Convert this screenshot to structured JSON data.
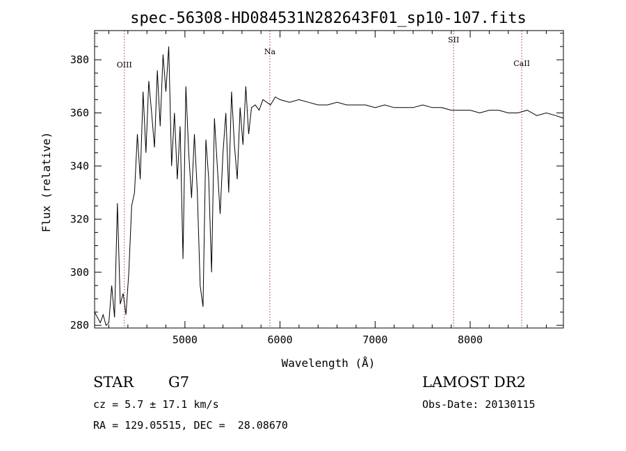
{
  "chart_data": {
    "type": "line",
    "title": "spec-56308-HD084531N282643F01_sp10-107.fits",
    "xlabel": "Wavelength (Å)",
    "ylabel": "Flux (relative)",
    "xlim": [
      4050,
      8980
    ],
    "ylim": [
      279,
      391
    ],
    "xticks": [
      5000,
      6000,
      7000,
      8000
    ],
    "yticks": [
      280,
      300,
      320,
      340,
      360,
      380
    ],
    "grid": false,
    "series": [
      {
        "x": [
          4050,
          4080,
          4110,
          4140,
          4170,
          4200,
          4230,
          4260,
          4290,
          4320,
          4350,
          4380,
          4410,
          4440,
          4470,
          4500,
          4530,
          4560,
          4590,
          4620,
          4650,
          4680,
          4710,
          4740,
          4770,
          4800,
          4830,
          4860,
          4890,
          4920,
          4950,
          4980,
          5010,
          5040,
          5070,
          5100,
          5130,
          5160,
          5190,
          5220,
          5250,
          5280,
          5310,
          5340,
          5370,
          5400,
          5430,
          5460,
          5490,
          5520,
          5550,
          5580,
          5610,
          5640,
          5670,
          5700,
          5740,
          5780,
          5820,
          5860,
          5900,
          5950,
          6000,
          6100,
          6200,
          6300,
          6400,
          6500,
          6600,
          6700,
          6800,
          6900,
          7000,
          7100,
          7200,
          7300,
          7400,
          7500,
          7600,
          7700,
          7800,
          7900,
          8000,
          8100,
          8200,
          8300,
          8400,
          8500,
          8600,
          8700,
          8800,
          8900,
          8980
        ],
        "y": [
          285,
          283,
          281,
          284,
          280,
          281,
          295,
          283,
          326,
          288,
          292,
          284,
          300,
          325,
          330,
          352,
          335,
          368,
          345,
          372,
          360,
          347,
          376,
          355,
          382,
          368,
          385,
          340,
          360,
          335,
          355,
          305,
          370,
          345,
          328,
          352,
          330,
          295,
          287,
          350,
          335,
          300,
          358,
          340,
          322,
          345,
          360,
          330,
          368,
          348,
          335,
          362,
          348,
          370,
          352,
          362,
          363,
          361,
          365,
          364,
          363,
          366,
          365,
          364,
          365,
          364,
          363,
          363,
          364,
          363,
          363,
          363,
          362,
          363,
          362,
          362,
          362,
          363,
          362,
          362,
          361,
          361,
          361,
          360,
          361,
          361,
          360,
          360,
          361,
          359,
          360,
          359,
          358
        ]
      }
    ],
    "spectral_lines": [
      {
        "label": "OIII",
        "x": 4363
      },
      {
        "label": "Na",
        "x": 5893
      },
      {
        "label": "SII",
        "x": 7825
      },
      {
        "label": "CaII",
        "x": 8542
      }
    ]
  },
  "info": {
    "object_class": "STAR",
    "subclass": "G7",
    "survey": "LAMOST DR2",
    "redshift": "cz = 5.7 ± 17.1 km/s",
    "obs_date": "Obs-Date: 20130115",
    "coords": "RA = 129.05515, DEC =  28.08670"
  }
}
